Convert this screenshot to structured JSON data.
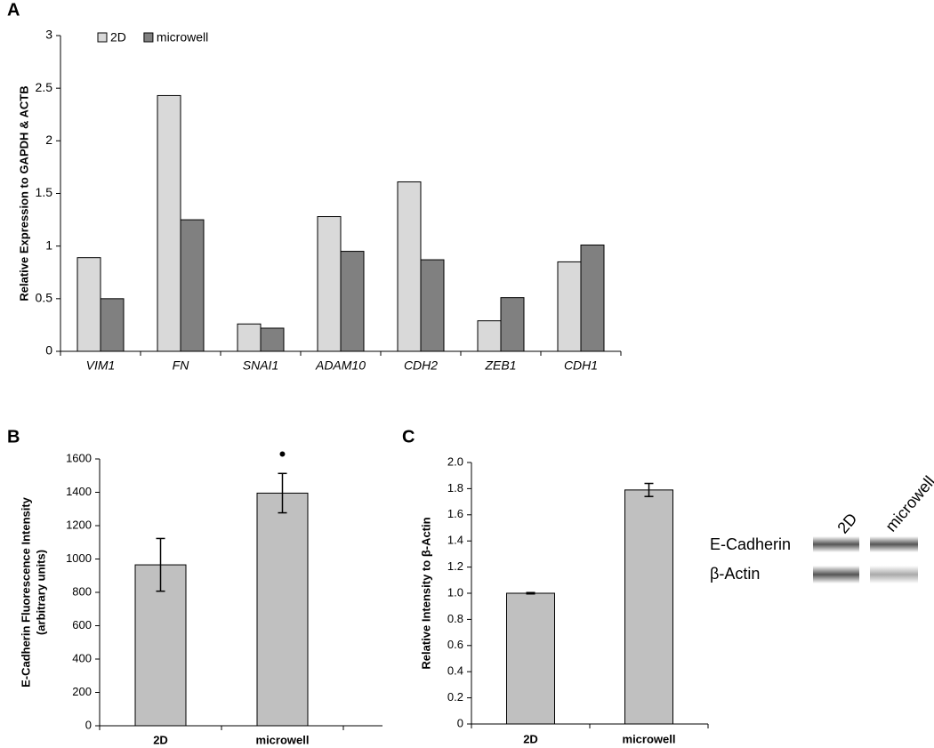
{
  "chart_data": [
    {
      "type": "bar",
      "panel": "A",
      "y_label": "Relative Expression to GAPDH & ACTB",
      "categories": [
        "VIM1",
        "FN",
        "SNAI1",
        "ADAM10",
        "CDH2",
        "ZEB1",
        "CDH1"
      ],
      "series": [
        {
          "name": "2D",
          "color": "#d9d9d9",
          "values": [
            0.89,
            2.43,
            0.26,
            1.28,
            1.61,
            0.29,
            0.85
          ]
        },
        {
          "name": "microwell",
          "color": "#808080",
          "values": [
            0.5,
            1.25,
            0.22,
            0.95,
            0.87,
            0.51,
            1.01
          ]
        }
      ],
      "ylim": [
        0,
        3
      ],
      "yticks": [
        0,
        0.5,
        1,
        1.5,
        2,
        2.5,
        3
      ],
      "legend": "top-left"
    },
    {
      "type": "bar",
      "panel": "B",
      "y_label": [
        "E-Cadherin Fluorescence Intensity",
        "(arbitrary units)"
      ],
      "categories": [
        "2D",
        "microwell"
      ],
      "values": [
        965,
        1395
      ],
      "errors": [
        158,
        118
      ],
      "color": "#c0c0c0",
      "ylim": [
        0,
        1600
      ],
      "yticks": [
        0,
        200,
        400,
        600,
        800,
        1000,
        1200,
        1400,
        1600
      ],
      "annotations": [
        {
          "text": "•",
          "category": "microwell"
        }
      ]
    },
    {
      "type": "bar",
      "panel": "C",
      "y_label": "Relative Intensity to β-Actin",
      "categories": [
        "2D",
        "microwell"
      ],
      "values": [
        1.0,
        1.79
      ],
      "errors": [
        0.005,
        0.05
      ],
      "color": "#c0c0c0",
      "ylim": [
        0,
        2
      ],
      "yticks": [
        0,
        0.2,
        0.4,
        0.6,
        0.8,
        {
          "value": 1,
          "label": "1.0"
        },
        1.2,
        1.4,
        1.6,
        1.8,
        {
          "value": 2,
          "label": "2.0"
        }
      ]
    }
  ],
  "blot": {
    "lanes": [
      "2D",
      "microwell"
    ],
    "bands": [
      "E-Cadherin",
      "β-Actin"
    ]
  }
}
